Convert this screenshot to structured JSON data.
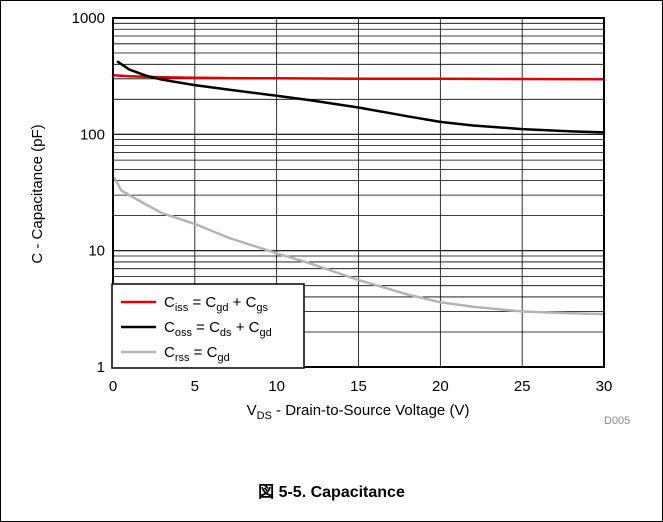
{
  "caption": "図 5-5. Capacitance",
  "source_id": "D005",
  "chart_data": {
    "type": "line",
    "xlabel": {
      "main": "V",
      "sub": "DS",
      "rest": " - Drain-to-Source Voltage (V)"
    },
    "ylabel": "C - Capacitance (pF)",
    "xlim": [
      0,
      30
    ],
    "ylim": [
      1,
      1000
    ],
    "yscale": "log",
    "grid": true,
    "legend_placement": "bottom-left",
    "xticks": [
      0,
      5,
      10,
      15,
      20,
      25,
      30
    ],
    "x_tick_labels": [
      "0",
      "5",
      "10",
      "15",
      "20",
      "25",
      "30"
    ],
    "yticks": [
      1,
      10,
      100,
      1000
    ],
    "y_tick_labels": [
      "1",
      "10",
      "100",
      "1000"
    ],
    "series": [
      {
        "key": "ciss",
        "color": "#e00000",
        "legend": [
          {
            "t": "C"
          },
          {
            "t": "iss",
            "sub": true
          },
          {
            "t": " = C"
          },
          {
            "t": "gd",
            "sub": true
          },
          {
            "t": " + C"
          },
          {
            "t": "gs",
            "sub": true
          }
        ],
        "x": [
          0,
          1,
          2,
          3,
          5,
          8,
          10,
          15,
          20,
          25,
          30
        ],
        "y": [
          322,
          316,
          312,
          310,
          307,
          304,
          303,
          301,
          300,
          299,
          298
        ]
      },
      {
        "key": "coss",
        "color": "#000000",
        "legend": [
          {
            "t": "C"
          },
          {
            "t": "oss",
            "sub": true
          },
          {
            "t": " = C"
          },
          {
            "t": "ds",
            "sub": true
          },
          {
            "t": " + C"
          },
          {
            "t": "gd",
            "sub": true
          }
        ],
        "x": [
          0.3,
          1,
          2,
          3,
          5,
          7,
          10,
          12,
          15,
          18,
          20,
          22,
          25,
          28,
          30
        ],
        "y": [
          420,
          360,
          320,
          295,
          265,
          243,
          215,
          197,
          170,
          143,
          128,
          119,
          111,
          106,
          104
        ]
      },
      {
        "key": "crss",
        "color": "#b4b4b4",
        "legend": [
          {
            "t": "C"
          },
          {
            "t": "rss",
            "sub": true
          },
          {
            "t": " = C"
          },
          {
            "t": "gd",
            "sub": true
          }
        ],
        "x": [
          0.1,
          0.5,
          1,
          2,
          3,
          5,
          7,
          10,
          12,
          15,
          18,
          20,
          22,
          25,
          28,
          30
        ],
        "y": [
          42,
          33,
          30,
          25,
          21,
          17,
          13,
          9.5,
          7.8,
          5.6,
          4.2,
          3.6,
          3.3,
          3.0,
          2.9,
          2.85
        ]
      }
    ]
  }
}
